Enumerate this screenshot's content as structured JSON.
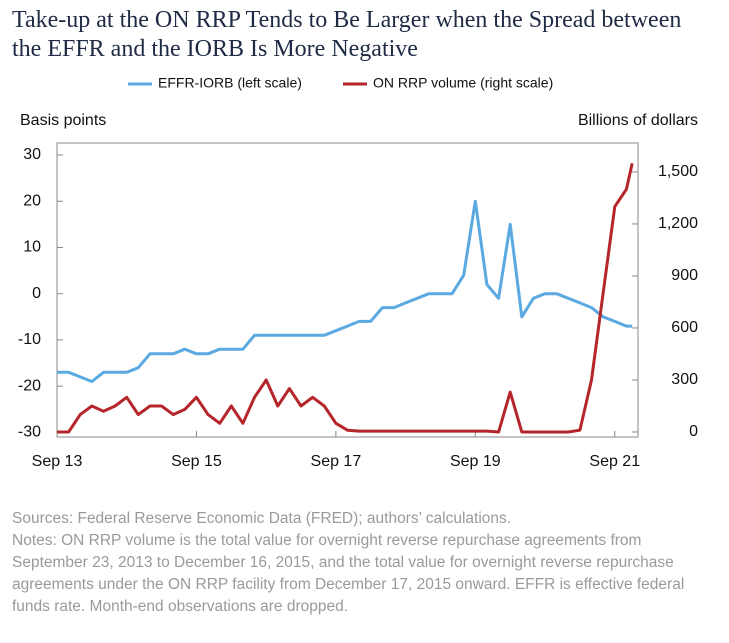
{
  "chart_data": {
    "type": "line",
    "title": "Take-up at the ON RRP Tends to Be Larger when the Spread between the EFFR and the IORB Is More Negative",
    "ylabel": "Basis points",
    "y2label": "Billions of dollars",
    "x": [
      "2013-09",
      "2013-11",
      "2014-01",
      "2014-03",
      "2014-05",
      "2014-07",
      "2014-09",
      "2014-11",
      "2015-01",
      "2015-03",
      "2015-05",
      "2015-07",
      "2015-09",
      "2015-11",
      "2016-01",
      "2016-03",
      "2016-05",
      "2016-07",
      "2016-09",
      "2016-11",
      "2017-01",
      "2017-03",
      "2017-05",
      "2017-07",
      "2017-09",
      "2017-11",
      "2018-01",
      "2018-03",
      "2018-05",
      "2018-07",
      "2018-09",
      "2018-11",
      "2019-01",
      "2019-03",
      "2019-05",
      "2019-07",
      "2019-09",
      "2019-11",
      "2020-01",
      "2020-03",
      "2020-05",
      "2020-07",
      "2020-09",
      "2020-11",
      "2021-01",
      "2021-03",
      "2021-05",
      "2021-07",
      "2021-09",
      "2021-11",
      "2021-12"
    ],
    "series": [
      {
        "name": "EFFR-IORB (left scale)",
        "color": "#5aa9e0",
        "values": [
          -17,
          -17,
          -18,
          -19,
          -17,
          -17,
          -17,
          -16,
          -13,
          -13,
          -13,
          -12,
          -13,
          -13,
          -12,
          -12,
          -12,
          -9,
          -9,
          -9,
          -9,
          -9,
          -9,
          -9,
          -8,
          -7,
          -6,
          -6,
          -3,
          -3,
          -2,
          -1,
          0,
          0,
          0,
          4,
          20,
          2,
          -1,
          15,
          -5,
          -1,
          0,
          0,
          -1,
          -2,
          -3,
          -5,
          -6,
          -7,
          -7
        ]
      },
      {
        "name": "ON RRP volume (right scale)",
        "color": "#b5262b",
        "axis": "y2",
        "values": [
          0,
          0,
          100,
          150,
          120,
          150,
          200,
          100,
          150,
          150,
          100,
          130,
          200,
          100,
          50,
          150,
          50,
          200,
          300,
          150,
          250,
          150,
          200,
          150,
          50,
          10,
          5,
          5,
          5,
          5,
          5,
          5,
          5,
          5,
          5,
          5,
          5,
          5,
          0,
          230,
          0,
          0,
          0,
          0,
          0,
          10,
          300,
          800,
          1300,
          1400,
          1550
        ]
      }
    ],
    "xlim": [
      "2013-09",
      "2022-01"
    ],
    "xticks": [
      {
        "value": "2013-09",
        "label": "Sep 13"
      },
      {
        "value": "2015-09",
        "label": "Sep 15"
      },
      {
        "value": "2017-09",
        "label": "Sep 17"
      },
      {
        "value": "2019-09",
        "label": "Sep 19"
      },
      {
        "value": "2021-09",
        "label": "Sep 21"
      }
    ],
    "ylim": [
      -31,
      32.6
    ],
    "yticks": [
      30,
      20,
      10,
      0,
      -10,
      -20,
      -30
    ],
    "y2lim": [
      -29,
      1667
    ],
    "y2ticks": [
      0,
      300,
      600,
      900,
      {
        "value": 1200,
        "label": "1,200"
      },
      {
        "value": 1500,
        "label": "1,500"
      }
    ]
  },
  "sources": "Sources: Federal Reserve Economic Data (FRED); authors’ calculations.",
  "notes": "Notes: ON RRP volume is the total value for overnight reverse repurchase agreements from September 23, 2013 to December 16, 2015, and the total value for overnight reverse repurchase agreements under the ON RRP facility from December 17, 2015 onward. EFFR is effective federal funds rate. Month-end observations are dropped."
}
